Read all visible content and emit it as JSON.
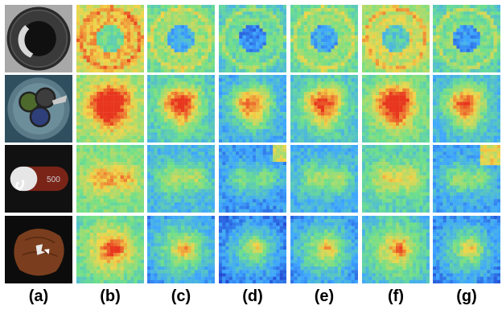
{
  "figure": {
    "column_labels": [
      "(a)",
      "(b)",
      "(c)",
      "(d)",
      "(e)",
      "(f)",
      "(g)"
    ],
    "rows": [
      {
        "subject": "bottle",
        "columns": [
          "input",
          "heatmap",
          "heatmap",
          "heatmap",
          "heatmap",
          "heatmap",
          "heatmap"
        ]
      },
      {
        "subject": "cable",
        "columns": [
          "input",
          "heatmap",
          "heatmap",
          "heatmap",
          "heatmap",
          "heatmap",
          "heatmap"
        ]
      },
      {
        "subject": "capsule",
        "columns": [
          "input",
          "heatmap",
          "heatmap",
          "heatmap",
          "heatmap",
          "heatmap",
          "heatmap"
        ]
      },
      {
        "subject": "hazelnut",
        "columns": [
          "input",
          "heatmap",
          "heatmap",
          "heatmap",
          "heatmap",
          "heatmap",
          "heatmap"
        ]
      }
    ],
    "colormap": {
      "low": "#1a2fc7",
      "mid_low": "#3ea6ff",
      "mid": "#6ee08a",
      "mid_high": "#f2d54a",
      "high": "#e8361e"
    }
  }
}
